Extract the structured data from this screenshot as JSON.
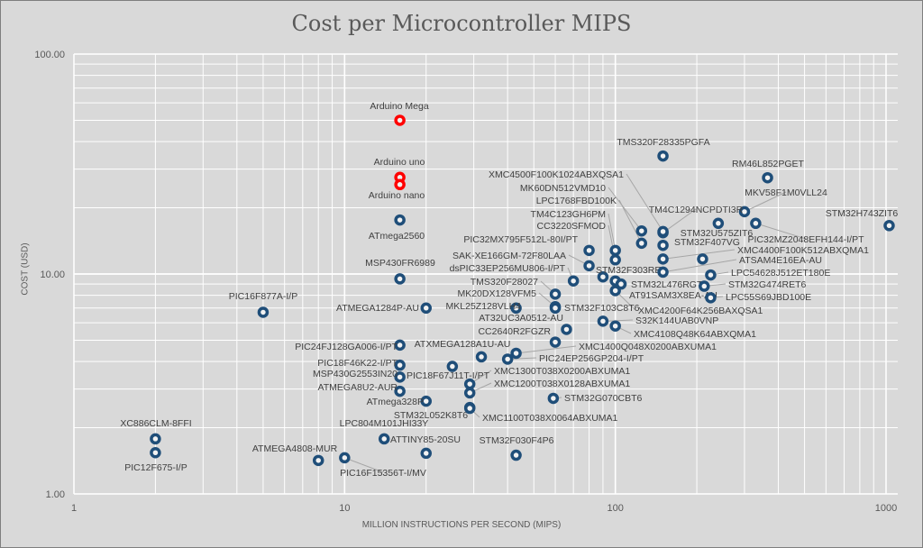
{
  "chart_data": {
    "type": "scatter",
    "title": "Cost per Microcontroller MIPS",
    "xlabel": "MILLION INSTRUCTIONS PER SECOND (MIPS)",
    "ylabel": "COST (USD)",
    "x_scale": "log",
    "y_scale": "log",
    "xlim": [
      1,
      1000
    ],
    "ylim": [
      1,
      100
    ],
    "x_ticks": [
      "1",
      "10",
      "100",
      "1000"
    ],
    "y_ticks": [
      "1.00",
      "10.00",
      "100.00"
    ],
    "grid": true,
    "legend": "none",
    "series": [
      {
        "color": "#ff0000",
        "points": [
          {
            "label": "Arduino Mega",
            "mips": 16,
            "cost": 50
          },
          {
            "label": "Arduino uno",
            "mips": 16,
            "cost": 27.5
          },
          {
            "label": "Arduino nano",
            "mips": 16,
            "cost": 25.5
          }
        ]
      },
      {
        "color": "#1f4e79",
        "points": [
          {
            "label": "ATmega2560",
            "mips": 16,
            "cost": 17.6
          },
          {
            "label": "MSP430FR6989",
            "mips": 16,
            "cost": 9.5
          },
          {
            "label": "PIC16F877A-I/P",
            "mips": 5,
            "cost": 6.7
          },
          {
            "label": "ATMEGA1284P-AU",
            "mips": 20,
            "cost": 7.0
          },
          {
            "label": "MKL25Z128VLH4",
            "mips": 43,
            "cost": 7.0
          },
          {
            "label": "TMS320F28027",
            "mips": 60,
            "cost": 8.1
          },
          {
            "label": "MK20DX128VFM5",
            "mips": 60,
            "cost": 7.1
          },
          {
            "label": "STM32F103C8T6",
            "mips": 60,
            "cost": 7.0
          },
          {
            "label": "dsPIC33EP256MU806-I/PT",
            "mips": 70,
            "cost": 9.3
          },
          {
            "label": "SAK-XE166GM-72F80LAA",
            "mips": 80,
            "cost": 10.9
          },
          {
            "label": "PIC32MX795F512L-80I/PT",
            "mips": 80,
            "cost": 12.8
          },
          {
            "label": "STM32F303RE",
            "mips": 90,
            "cost": 9.7
          },
          {
            "label": "TM4C123GH6PM",
            "mips": 100,
            "cost": 12.8
          },
          {
            "label": "CC3220SFMOD",
            "mips": 100,
            "cost": 11.6
          },
          {
            "label": "STM32L476RGT6",
            "mips": 100,
            "cost": 9.3
          },
          {
            "label": "AT91SAM3X8EA-AU",
            "mips": 105,
            "cost": 9.0
          },
          {
            "label": "XMC4200F64K256BAXQSA1",
            "mips": 100,
            "cost": 8.4
          },
          {
            "label": "S32K144UAB0VNP",
            "mips": 90,
            "cost": 6.1
          },
          {
            "label": "XMC4108Q48K64ABXQMA1",
            "mips": 100,
            "cost": 5.8
          },
          {
            "label": "AT32UC3A0512-AU",
            "mips": 66,
            "cost": 5.6
          },
          {
            "label": "CC2640R2FGZR",
            "mips": 60,
            "cost": 4.9
          },
          {
            "label": "XMC1400Q048X0200ABXUMA1",
            "mips": 43,
            "cost": 4.36
          },
          {
            "label": "PIC24EP256GP204-I/PT",
            "mips": 40,
            "cost": 4.1
          },
          {
            "label": "ATXMEGA128A1U-AU",
            "mips": 32,
            "cost": 4.2
          },
          {
            "label": "PIC18F67J11T-I/PT",
            "mips": 25,
            "cost": 3.8
          },
          {
            "label": "XMC1300T038X0200ABXUMA1",
            "mips": 29,
            "cost": 3.16
          },
          {
            "label": "XMC1200T038X0128ABXUMA1",
            "mips": 29,
            "cost": 2.88
          },
          {
            "label": "STM32L052K8T6",
            "mips": 29,
            "cost": 2.47
          },
          {
            "label": "XMC1100T038X0064ABXUMA1",
            "mips": 29,
            "cost": 2.45
          },
          {
            "label": "ATmega328P",
            "mips": 20,
            "cost": 2.64
          },
          {
            "label": "PIC24FJ128GA006-I/PT",
            "mips": 16,
            "cost": 4.75
          },
          {
            "label": "PIC18F46K22-I/PT",
            "mips": 16,
            "cost": 3.85
          },
          {
            "label": "MSP430G2553IN20",
            "mips": 16,
            "cost": 3.4
          },
          {
            "label": "ATMEGA8U2-AUR",
            "mips": 16,
            "cost": 2.93
          },
          {
            "label": "STM32G070CBT6",
            "mips": 59,
            "cost": 2.72
          },
          {
            "label": "LPC804M101JHI33Y",
            "mips": 14,
            "cost": 1.78
          },
          {
            "label": "ATTINY85-20SU",
            "mips": 20,
            "cost": 1.53
          },
          {
            "label": "STM32F030F4P6",
            "mips": 43,
            "cost": 1.5
          },
          {
            "label": "XC886CLM-8FFI",
            "mips": 2,
            "cost": 1.78
          },
          {
            "label": "PIC12F675-I/P",
            "mips": 2,
            "cost": 1.54
          },
          {
            "label": "ATMEGA4808-MUR",
            "mips": 8,
            "cost": 1.42
          },
          {
            "label": "PIC16F15356T-I/MV",
            "mips": 10,
            "cost": 1.46
          },
          {
            "label": "TMS320F28335PGFA",
            "mips": 150,
            "cost": 34.4
          },
          {
            "label": "RM46L852PGET",
            "mips": 365,
            "cost": 27.4
          },
          {
            "label": "MKV58F1M0VLL24",
            "mips": 300,
            "cost": 19.2
          },
          {
            "label": "STM32H743ZIT6",
            "mips": 1027,
            "cost": 16.6
          },
          {
            "label": "PIC32MZ2048EFH144-I/PT",
            "mips": 330,
            "cost": 17
          },
          {
            "label": "STM32U575ZIT6",
            "mips": 240,
            "cost": 17
          },
          {
            "label": "TM4C1294NCPDTI3R",
            "mips": 150,
            "cost": 15.4
          },
          {
            "label": "XMC4500F100K1024ABXQSA1",
            "mips": 150,
            "cost": 15.6
          },
          {
            "label": "MK60DN512VMD10",
            "mips": 125,
            "cost": 15.7
          },
          {
            "label": "LPC1768FBD100K",
            "mips": 125,
            "cost": 13.8
          },
          {
            "label": "STM32F407VG",
            "mips": 150,
            "cost": 13.5
          },
          {
            "label": "XMC4400F100K512ABXQMA1",
            "mips": 150,
            "cost": 11.7
          },
          {
            "label": "ATSAM4E16EA-AU",
            "mips": 150,
            "cost": 10.2
          },
          {
            "label": "",
            "mips": 210,
            "cost": 11.7
          },
          {
            "label": "LPC54628J512ET180E",
            "mips": 225,
            "cost": 9.9
          },
          {
            "label": "STM32G474RET6",
            "mips": 213,
            "cost": 8.8
          },
          {
            "label": "LPC55S69JBD100E",
            "mips": 225,
            "cost": 7.8
          }
        ]
      }
    ]
  }
}
